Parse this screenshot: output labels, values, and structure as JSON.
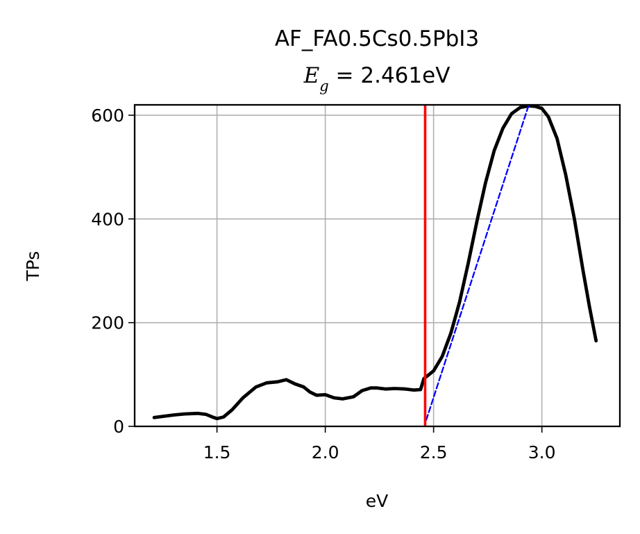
{
  "chart_data": {
    "type": "line",
    "title": "AF_FA0.5Cs0.5PbI3",
    "subtitle": {
      "symbol": "E",
      "subscript": "g",
      "text": " = 2.461eV"
    },
    "xlabel": "eV",
    "ylabel": "TPs",
    "xlim": [
      1.12,
      3.36
    ],
    "ylim": [
      0,
      620
    ],
    "xticks": [
      1.5,
      2.0,
      2.5,
      3.0
    ],
    "xtick_labels": [
      "1.5",
      "2.0",
      "2.5",
      "3.0"
    ],
    "yticks": [
      0,
      200,
      400,
      600
    ],
    "ytick_labels": [
      "0",
      "200",
      "400",
      "600"
    ],
    "grid": true,
    "series": [
      {
        "color": "#000000",
        "style": "solid",
        "x": [
          1.21,
          1.3,
          1.35,
          1.41,
          1.45,
          1.48,
          1.5,
          1.53,
          1.57,
          1.62,
          1.68,
          1.73,
          1.78,
          1.82,
          1.86,
          1.9,
          1.93,
          1.96,
          2.0,
          2.04,
          2.08,
          2.13,
          2.17,
          2.21,
          2.24,
          2.28,
          2.32,
          2.37,
          2.41,
          2.44,
          2.455,
          2.47,
          2.5,
          2.54,
          2.58,
          2.62,
          2.66,
          2.7,
          2.74,
          2.78,
          2.82,
          2.86,
          2.9,
          2.94,
          2.97,
          3.0,
          3.03,
          3.07,
          3.11,
          3.15,
          3.19,
          3.22,
          3.25
        ],
        "y": [
          17,
          22,
          24,
          25,
          23,
          18,
          15,
          18,
          32,
          55,
          76,
          84,
          86,
          90,
          82,
          76,
          66,
          60,
          61,
          55,
          53,
          57,
          69,
          74,
          74,
          72,
          73,
          72,
          70,
          71,
          92,
          97,
          107,
          135,
          180,
          240,
          315,
          395,
          470,
          532,
          575,
          603,
          615,
          618,
          617,
          613,
          597,
          555,
          485,
          400,
          300,
          230,
          165
        ]
      },
      {
        "color": "#0000ff",
        "style": "dashed",
        "x": [
          2.466,
          2.938
        ],
        "y": [
          12,
          618
        ]
      }
    ],
    "vlines": [
      {
        "x": 2.461,
        "color": "#ff0000"
      }
    ]
  }
}
